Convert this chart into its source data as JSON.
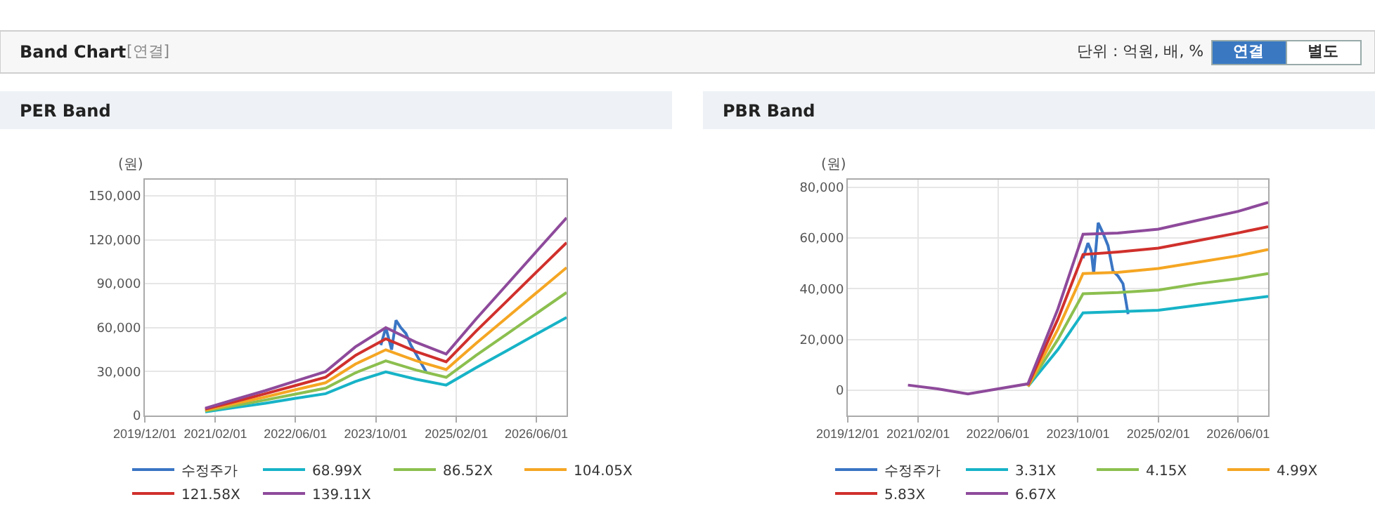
{
  "chart_data": [
    {
      "type": "other",
      "title": "Band Chart",
      "annotations": [
        "[연결]",
        "단위 : 억원, 배, %",
        "연결",
        "별도"
      ]
    },
    {
      "type": "line",
      "title": "PER Band",
      "ylabel": "(원)",
      "xlim": [
        "2019-12-01",
        "2026-12-01"
      ],
      "ylim": [
        0,
        161000
      ],
      "xticks": [
        {
          "value": "2019-12-01",
          "label": "2019/12/01"
        },
        {
          "value": "2021-02-01",
          "label": "2021/02/01"
        },
        {
          "value": "2022-06-01",
          "label": "2022/06/01"
        },
        {
          "value": "2023-10-01",
          "label": "2023/10/01"
        },
        {
          "value": "2025-02-01",
          "label": "2025/02/01"
        },
        {
          "value": "2026-06-01",
          "label": "2026/06/01"
        }
      ],
      "yticks": [
        {
          "value": 0,
          "label": "0"
        },
        {
          "value": 30000,
          "label": "30,000"
        },
        {
          "value": 60000,
          "label": "60,000"
        },
        {
          "value": 90000,
          "label": "90,000"
        },
        {
          "value": 120000,
          "label": "120,000"
        },
        {
          "value": 150000,
          "label": "150,000"
        }
      ],
      "grid": true,
      "legend": "bottom",
      "marker": "none",
      "x": [
        "2020-12",
        "2021-06",
        "2021-12",
        "2022-06",
        "2022-12",
        "2023-06",
        "2023-12",
        "2024-06",
        "2024-12",
        "2025-06",
        "2025-12",
        "2026-06",
        "2026-12"
      ],
      "series": [
        {
          "name": "수정주가",
          "color": "#3a75c4",
          "x": [
            "2023-11-01",
            "2023-12-01",
            "2023-12-20",
            "2024-01-05",
            "2024-02-01",
            "2024-03-01",
            "2024-04-01",
            "2024-05-01",
            "2024-06-01",
            "2024-07-01",
            "2024-08-01"
          ],
          "values": [
            48000,
            60000,
            52000,
            45000,
            65000,
            60000,
            56000,
            48000,
            42000,
            36000,
            30000
          ]
        },
        {
          "name": "68.99X",
          "color": "#17b3c7",
          "values": [
            2500,
            5500,
            8400,
            11700,
            14900,
            23300,
            29800,
            24800,
            20800,
            32700,
            44100,
            55600,
            67000
          ]
        },
        {
          "name": "86.52X",
          "color": "#8cbf4f",
          "values": [
            3100,
            6800,
            10600,
            14600,
            18700,
            29200,
            37300,
            31100,
            26100,
            41100,
            55400,
            69700,
            84000
          ]
        },
        {
          "name": "104.05X",
          "color": "#f5a623",
          "values": [
            3700,
            8200,
            12700,
            17600,
            22400,
            35200,
            44900,
            37400,
            31400,
            49400,
            66600,
            83800,
            101000
          ]
        },
        {
          "name": "121.58X",
          "color": "#d0302c",
          "values": [
            4400,
            9600,
            14900,
            20500,
            26200,
            41100,
            52400,
            43700,
            36700,
            57700,
            77800,
            97900,
            118000
          ]
        },
        {
          "name": "139.11X",
          "color": "#8e4a9b",
          "values": [
            5000,
            11000,
            17000,
            23500,
            30000,
            47000,
            60000,
            50000,
            42000,
            66000,
            89000,
            112000,
            135000
          ]
        }
      ]
    },
    {
      "type": "line",
      "title": "PBR Band",
      "ylabel": "(원)",
      "xlim": [
        "2019-12-01",
        "2026-12-01"
      ],
      "ylim": [
        -10000,
        83000
      ],
      "xticks": [
        {
          "value": "2019-12-01",
          "label": "2019/12/01"
        },
        {
          "value": "2021-02-01",
          "label": "2021/02/01"
        },
        {
          "value": "2022-06-01",
          "label": "2022/06/01"
        },
        {
          "value": "2023-10-01",
          "label": "2023/10/01"
        },
        {
          "value": "2025-02-01",
          "label": "2025/02/01"
        },
        {
          "value": "2026-06-01",
          "label": "2026/06/01"
        }
      ],
      "yticks": [
        {
          "value": 0,
          "label": "0"
        },
        {
          "value": 20000,
          "label": "20,000"
        },
        {
          "value": 40000,
          "label": "40,000"
        },
        {
          "value": 60000,
          "label": "60,000"
        },
        {
          "value": 80000,
          "label": "80,000"
        }
      ],
      "grid": true,
      "legend": "bottom",
      "marker": "none",
      "x": [
        "2020-12",
        "2021-06",
        "2021-12",
        "2022-06",
        "2022-12",
        "2023-06",
        "2023-11",
        "2024-06",
        "2025-02",
        "2025-10",
        "2026-06",
        "2026-12"
      ],
      "series": [
        {
          "name": "수정주가",
          "color": "#3a75c4",
          "x": [
            "2023-11-01",
            "2023-12-01",
            "2023-12-20",
            "2024-01-05",
            "2024-02-01",
            "2024-03-01",
            "2024-04-01",
            "2024-05-01",
            "2024-06-01",
            "2024-07-01",
            "2024-08-01"
          ],
          "values": [
            52000,
            58000,
            55000,
            46000,
            66000,
            62000,
            57000,
            47000,
            45000,
            42000,
            30000
          ]
        },
        {
          "name": "3.31X",
          "color": "#17b3c7",
          "values": [
            null,
            null,
            null,
            null,
            1500,
            16000,
            30500,
            31000,
            31500,
            33500,
            35500,
            37000
          ]
        },
        {
          "name": "4.15X",
          "color": "#8cbf4f",
          "values": [
            null,
            null,
            null,
            null,
            1500,
            20000,
            38000,
            38500,
            39500,
            42000,
            44000,
            46000
          ]
        },
        {
          "name": "4.99X",
          "color": "#f5a623",
          "values": [
            null,
            null,
            null,
            null,
            1500,
            24000,
            46000,
            46500,
            48000,
            50500,
            53000,
            55500
          ]
        },
        {
          "name": "5.83X",
          "color": "#d0302c",
          "values": [
            null,
            null,
            null,
            null,
            2000,
            28000,
            53500,
            54500,
            56000,
            59000,
            62000,
            64500
          ]
        },
        {
          "name": "6.67X",
          "color": "#8e4a9b",
          "values": [
            2000,
            500,
            -1500,
            500,
            2500,
            32000,
            61500,
            62000,
            63500,
            67000,
            70500,
            74000
          ]
        }
      ]
    }
  ]
}
